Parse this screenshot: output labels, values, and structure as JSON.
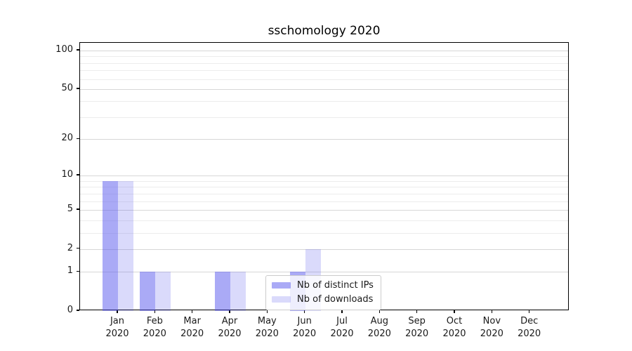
{
  "figure": {
    "background": "#ffffff"
  },
  "chart_data": {
    "type": "bar",
    "title": "sschomology 2020",
    "xlabel": "",
    "ylabel": "",
    "categories": [
      "Jan 2020",
      "Feb 2020",
      "Mar 2020",
      "Apr 2020",
      "May 2020",
      "Jun 2020",
      "Jul 2020",
      "Aug 2020",
      "Sep 2020",
      "Oct 2020",
      "Nov 2020",
      "Dec 2020"
    ],
    "series": [
      {
        "name": "Nb of distinct IPs",
        "values": [
          9,
          1,
          0,
          1,
          0,
          1,
          0,
          0,
          0,
          0,
          0,
          0
        ],
        "color": "rgba(85,85,238,0.5)"
      },
      {
        "name": "Nb of downloads",
        "values": [
          9,
          1,
          0,
          1,
          0,
          2,
          0,
          0,
          0,
          0,
          0,
          0
        ],
        "color": "rgba(85,85,238,0.22)"
      }
    ],
    "y_axis": {
      "scale": "log1p",
      "major_ticks": [
        0,
        1,
        2,
        5,
        10,
        20,
        50,
        100
      ],
      "minor_ticks": [
        3,
        4,
        6,
        7,
        8,
        9,
        30,
        40,
        60,
        70,
        80,
        90
      ],
      "range": [
        0,
        115
      ]
    },
    "grid": true,
    "legend_position": "lower-center"
  },
  "colors": {
    "bar_distinct_ips": "rgba(85,85,238,0.5)",
    "bar_downloads": "rgba(85,85,238,0.22)",
    "grid_major": "#d7d7d7",
    "grid_minor": "#ececec",
    "spine": "#000000",
    "text": "#1a1a1a",
    "legend_border": "#cccccc",
    "legend_background": "rgba(255,255,255,0.8)"
  }
}
